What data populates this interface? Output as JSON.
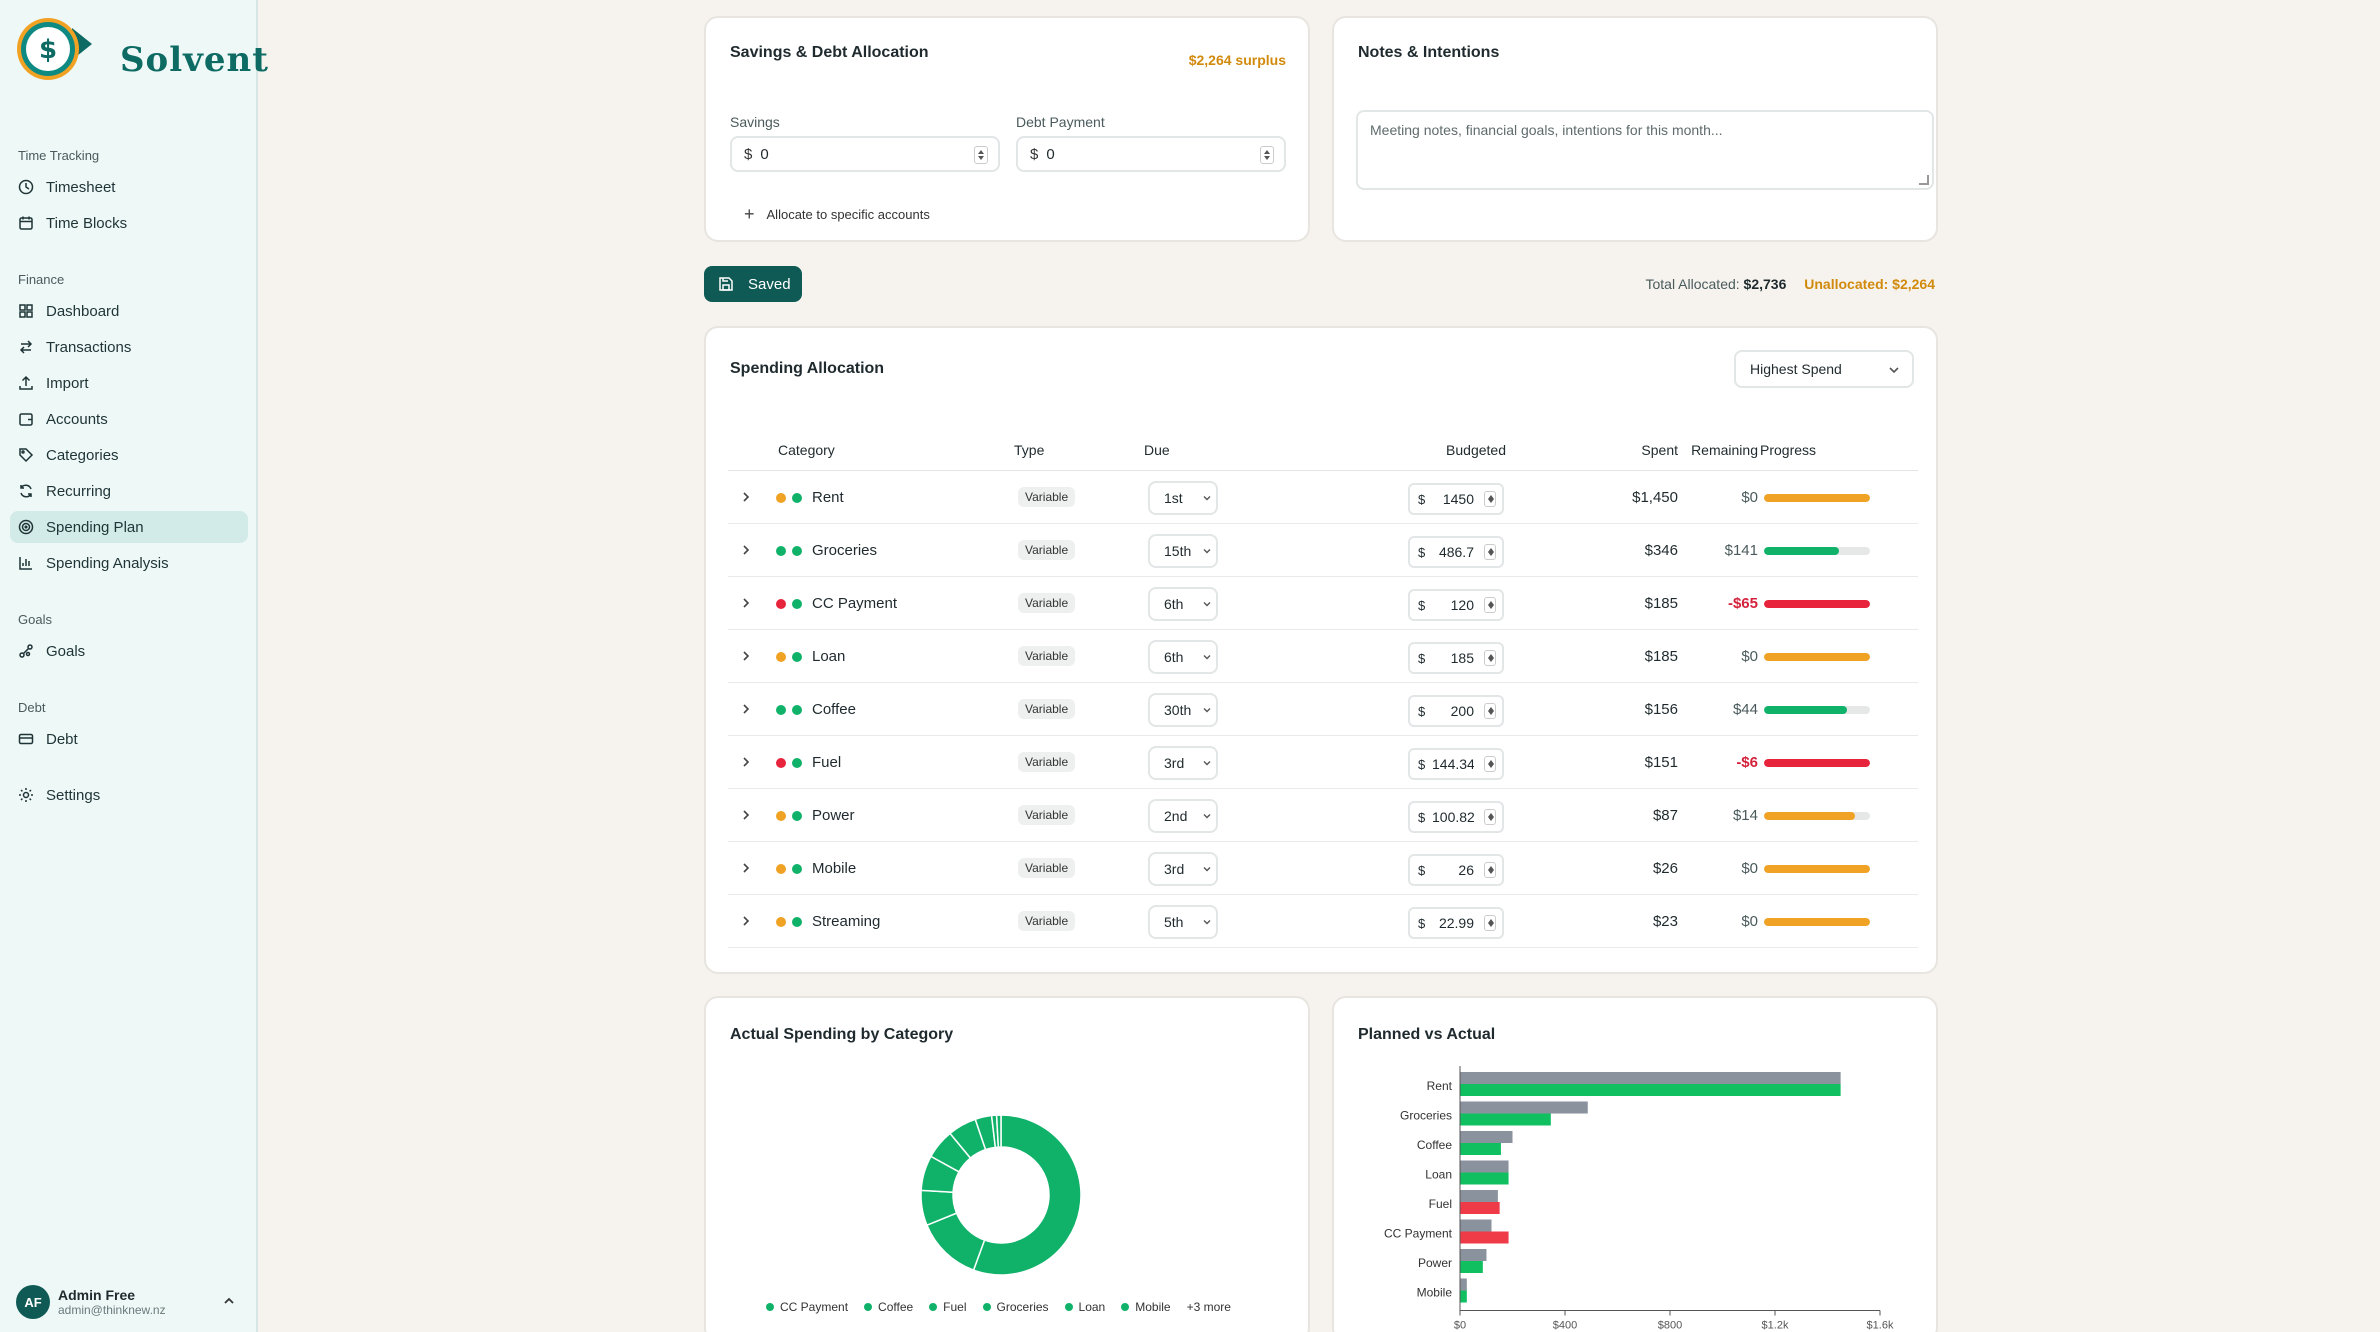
{
  "brand": {
    "name": "Solvent"
  },
  "sidebar": {
    "sections": [
      {
        "label": "Time Tracking",
        "items": [
          {
            "label": "Timesheet",
            "icon": "clock-icon"
          },
          {
            "label": "Time Blocks",
            "icon": "calendar-icon"
          }
        ]
      },
      {
        "label": "Finance",
        "items": [
          {
            "label": "Dashboard",
            "icon": "dashboard-icon"
          },
          {
            "label": "Transactions",
            "icon": "arrows-icon"
          },
          {
            "label": "Import",
            "icon": "upload-icon"
          },
          {
            "label": "Accounts",
            "icon": "wallet-icon"
          },
          {
            "label": "Categories",
            "icon": "tag-icon"
          },
          {
            "label": "Recurring",
            "icon": "refresh-icon"
          },
          {
            "label": "Spending Plan",
            "icon": "target-icon",
            "active": true
          },
          {
            "label": "Spending Analysis",
            "icon": "bar-chart-icon"
          }
        ]
      },
      {
        "label": "Goals",
        "items": [
          {
            "label": "Goals",
            "icon": "goals-icon"
          }
        ]
      },
      {
        "label": "Debt",
        "items": [
          {
            "label": "Debt",
            "icon": "card-icon"
          }
        ]
      }
    ],
    "settings": {
      "label": "Settings",
      "icon": "gear-icon"
    },
    "user": {
      "initials": "AF",
      "name": "Admin Free",
      "email": "admin@thinknew.nz"
    }
  },
  "savings_card": {
    "title": "Savings & Debt Allocation",
    "surplus": "$2,264 surplus",
    "savings_label": "Savings",
    "savings_currency": "$",
    "savings_value": "0",
    "debt_label": "Debt Payment",
    "debt_currency": "$",
    "debt_value": "0",
    "allocate_link": "Allocate to specific accounts"
  },
  "notes_card": {
    "title": "Notes & Intentions",
    "placeholder": "Meeting notes, financial goals, intentions for this month..."
  },
  "toolbar": {
    "saved_label": "Saved",
    "total_allocated_label": "Total Allocated:",
    "total_allocated_value": "$2,736",
    "unallocated": "Unallocated: $2,264"
  },
  "spending": {
    "title": "Spending Allocation",
    "sort_value": "Highest Spend",
    "columns": [
      "Category",
      "Type",
      "Due",
      "Budgeted",
      "Spent",
      "Remaining",
      "Progress"
    ],
    "rows": [
      {
        "name": "Rent",
        "status": "#f0a224",
        "type": "Variable",
        "due": "1st",
        "budget": "1450",
        "spent": "$1,450",
        "remaining": "$0",
        "neg": false,
        "progress": 1.0,
        "bar_color": "#f0a224"
      },
      {
        "name": "Groceries",
        "status": "#10b26a",
        "type": "Variable",
        "due": "15th",
        "budget": "486.7",
        "spent": "$346",
        "remaining": "$141",
        "neg": false,
        "progress": 0.71,
        "bar_color": "#10b26a"
      },
      {
        "name": "CC Payment",
        "status": "#e8243c",
        "type": "Variable",
        "due": "6th",
        "budget": "120",
        "spent": "$185",
        "remaining": "-$65",
        "neg": true,
        "progress": 1.0,
        "bar_color": "#e8243c"
      },
      {
        "name": "Loan",
        "status": "#f0a224",
        "type": "Variable",
        "due": "6th",
        "budget": "185",
        "spent": "$185",
        "remaining": "$0",
        "neg": false,
        "progress": 1.0,
        "bar_color": "#f0a224"
      },
      {
        "name": "Coffee",
        "status": "#10b26a",
        "type": "Variable",
        "due": "30th",
        "budget": "200",
        "spent": "$156",
        "remaining": "$44",
        "neg": false,
        "progress": 0.78,
        "bar_color": "#10b26a"
      },
      {
        "name": "Fuel",
        "status": "#e8243c",
        "type": "Variable",
        "due": "3rd",
        "budget": "144.34",
        "spent": "$151",
        "remaining": "-$6",
        "neg": true,
        "progress": 1.0,
        "bar_color": "#e8243c"
      },
      {
        "name": "Power",
        "status": "#f0a224",
        "type": "Variable",
        "due": "2nd",
        "budget": "100.82",
        "spent": "$87",
        "remaining": "$14",
        "neg": false,
        "progress": 0.86,
        "bar_color": "#f0a224"
      },
      {
        "name": "Mobile",
        "status": "#f0a224",
        "type": "Variable",
        "due": "3rd",
        "budget": "26",
        "spent": "$26",
        "remaining": "$0",
        "neg": false,
        "progress": 1.0,
        "bar_color": "#f0a224"
      },
      {
        "name": "Streaming",
        "status": "#f0a224",
        "type": "Variable",
        "due": "5th",
        "budget": "22.99",
        "spent": "$23",
        "remaining": "$0",
        "neg": false,
        "progress": 1.0,
        "bar_color": "#f0a224"
      }
    ]
  },
  "donut": {
    "title": "Actual Spending by Category",
    "legend": [
      "CC Payment",
      "Coffee",
      "Fuel",
      "Groceries",
      "Loan",
      "Mobile"
    ],
    "legend_more": "+3 more"
  },
  "pva": {
    "title": "Planned vs Actual"
  },
  "chart_data": [
    {
      "type": "pie",
      "categories": [
        "Rent",
        "Groceries",
        "CC Payment",
        "Loan",
        "Coffee",
        "Fuel",
        "Power",
        "Mobile",
        "Streaming"
      ],
      "values": [
        1450,
        346,
        185,
        185,
        156,
        151,
        87,
        26,
        23
      ],
      "color": "#10b26a"
    },
    {
      "type": "bar",
      "orientation": "horizontal",
      "categories": [
        "Rent",
        "Groceries",
        "Coffee",
        "Loan",
        "Fuel",
        "CC Payment",
        "Power",
        "Mobile"
      ],
      "series": [
        {
          "values": [
            1450,
            486.7,
            200,
            185,
            144.34,
            120,
            100.82,
            26
          ],
          "color": "#8a929e"
        },
        {
          "values": [
            1450,
            346,
            156,
            185,
            151,
            185,
            87,
            26
          ],
          "colors": [
            "#10c060",
            "#10c060",
            "#10c060",
            "#10c060",
            "#ef3a48",
            "#ef3a48",
            "#10c060",
            "#10c060"
          ]
        }
      ],
      "x_ticks": [
        "$0",
        "$400",
        "$800",
        "$1.2k",
        "$1.6k"
      ],
      "xlim": [
        0,
        1600
      ]
    }
  ]
}
